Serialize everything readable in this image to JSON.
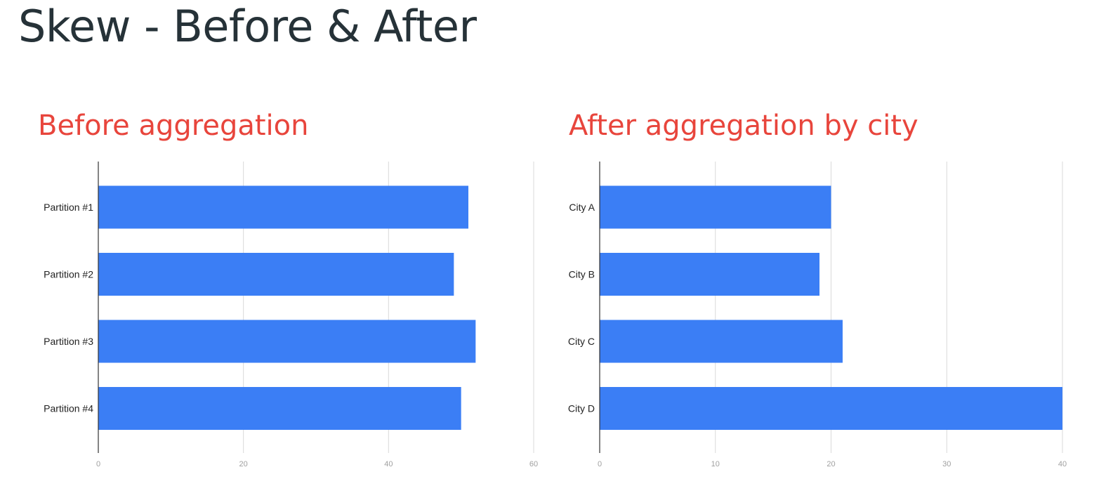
{
  "slide": {
    "title": "Skew - Before & After"
  },
  "colors": {
    "title": "#263238",
    "heading": "#e8453c",
    "bar": "#3b7ef5",
    "grid": "#d9d9d9"
  },
  "chart_data": [
    {
      "type": "bar",
      "orientation": "horizontal",
      "title": "Before aggregation",
      "categories": [
        "Partition #1",
        "Partition #2",
        "Partition #3",
        "Partition #4"
      ],
      "values": [
        51,
        49,
        52,
        50
      ],
      "xlim": [
        0,
        60
      ],
      "xticks": [
        "0",
        "20",
        "40",
        "60"
      ],
      "grid": true,
      "legend": false
    },
    {
      "type": "bar",
      "orientation": "horizontal",
      "title": "After aggregation by city",
      "categories": [
        "City A",
        "City B",
        "City C",
        "City D"
      ],
      "values": [
        20,
        19,
        21,
        40
      ],
      "xlim": [
        0,
        40
      ],
      "xticks": [
        "0",
        "10",
        "20",
        "30",
        "40"
      ],
      "grid": true,
      "legend": false
    }
  ]
}
